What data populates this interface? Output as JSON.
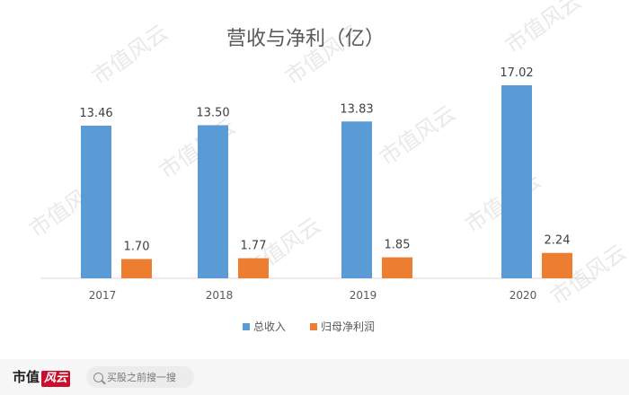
{
  "chart_data": {
    "type": "bar",
    "title": "营收与净利（亿）",
    "categories": [
      "2017",
      "2018",
      "2019",
      "2020"
    ],
    "series": [
      {
        "name": "总收入",
        "color": "#5b9bd5",
        "values": [
          13.46,
          13.5,
          13.83,
          17.02
        ]
      },
      {
        "name": "归母净利润",
        "color": "#ed7d31",
        "values": [
          1.7,
          1.77,
          1.85,
          2.24
        ]
      }
    ],
    "value_labels": [
      [
        "13.46",
        "13.50",
        "13.83",
        "17.02"
      ],
      [
        "1.70",
        "1.77",
        "1.85",
        "2.24"
      ]
    ],
    "ylim": [
      0,
      18
    ],
    "grid": false,
    "legend": "bottom"
  },
  "watermark": "市值风云",
  "footer": {
    "brand": "市值",
    "brand_stamp": "风云",
    "search_text": "买股之前搜一搜"
  }
}
